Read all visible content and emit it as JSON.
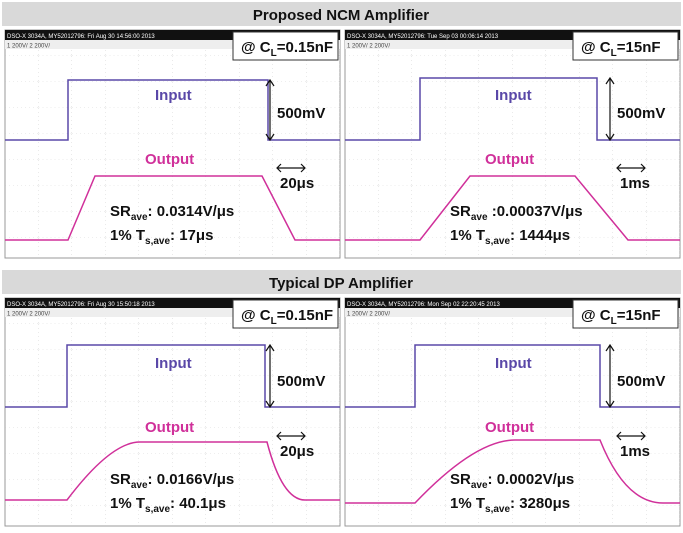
{
  "sections": [
    {
      "title": "Proposed NCM Amplifier",
      "panels": [
        {
          "timestamp": "DSO-X 3034A, MY52012796: Fri Aug 30 14:56:00 2013",
          "channels": "1  200V/  2  200V/",
          "condition": {
            "main": "@ C",
            "sub": "L",
            "value": "=0.15nF"
          },
          "input": "Input",
          "output": "Output",
          "amplitude": "500mV",
          "time_scale": "20μs",
          "slew_rate": {
            "main": "SR",
            "sub": "ave",
            "value": ": 0.0314V/μs"
          },
          "settling": {
            "main": "1% T",
            "sub": "s,ave",
            "value": ": 17μs"
          }
        },
        {
          "timestamp": "DSO-X 3034A, MY52012796: Tue Sep 03 00:06:14 2013",
          "channels": "1  200V/  2  200V/",
          "condition": {
            "main": "@ C",
            "sub": "L",
            "value": "=15nF"
          },
          "input": "Input",
          "output": "Output",
          "amplitude": "500mV",
          "time_scale": "1ms",
          "slew_rate": {
            "main": "SR",
            "sub": "ave",
            "value": " :0.00037V/μs"
          },
          "settling": {
            "main": "1% T",
            "sub": "s,ave",
            "value": ": 1444μs"
          }
        }
      ]
    },
    {
      "title": "Typical DP Amplifier",
      "panels": [
        {
          "timestamp": "DSO-X 3034A, MY52012796: Fri Aug 30 15:50:18 2013",
          "channels": "1  200V/  2  200V/",
          "condition": {
            "main": "@ C",
            "sub": "L",
            "value": "=0.15nF"
          },
          "input": "Input",
          "output": "Output",
          "amplitude": "500mV",
          "time_scale": "20μs",
          "slew_rate": {
            "main": "SR",
            "sub": "ave",
            "value": ": 0.0166V/μs"
          },
          "settling": {
            "main": "1% T",
            "sub": "s,ave",
            "value": ": 40.1μs"
          }
        },
        {
          "timestamp": "DSO-X 3034A, MY52012796: Mon Sep 02 22:20:45 2013",
          "channels": "1  200V/  2  200V/",
          "condition": {
            "main": "@ C",
            "sub": "L",
            "value": "=15nF"
          },
          "input": "Input",
          "output": "Output",
          "amplitude": "500mV",
          "time_scale": "1ms",
          "slew_rate": {
            "main": "SR",
            "sub": "ave",
            "value": ": 0.0002V/μs"
          },
          "settling": {
            "main": "1% T",
            "sub": "s,ave",
            "value": ": 3280μs"
          }
        }
      ]
    }
  ]
}
